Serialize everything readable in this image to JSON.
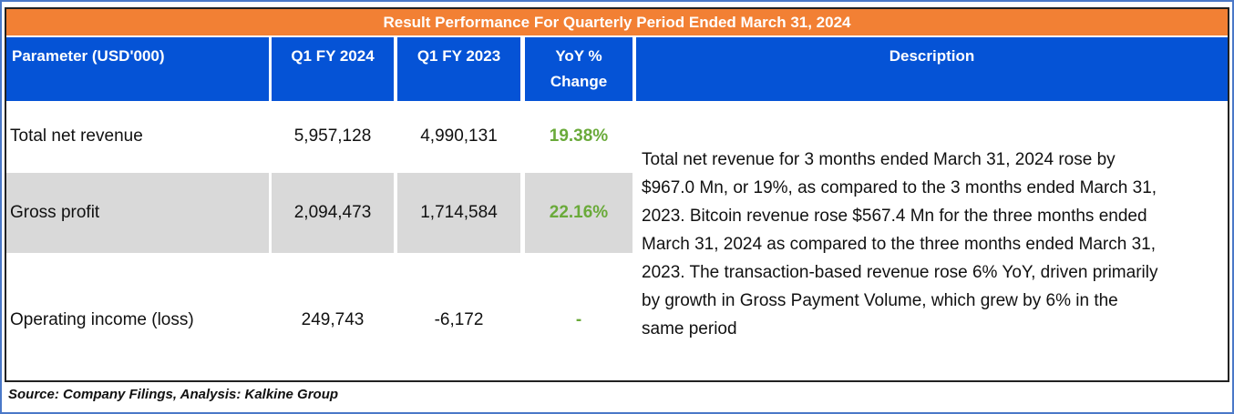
{
  "title": "Result Performance For Quarterly Period Ended March 31, 2024",
  "headers": [
    "Parameter  (USD'000)",
    "Q1 FY 2024",
    "Q1 FY 2023",
    "YoY %",
    "Change",
    "Description"
  ],
  "rows": [
    {
      "parameter": "Total net revenue",
      "q1_2024": "5,957,128",
      "q1_2023": "4,990,131",
      "yoy": "19.38%"
    },
    {
      "parameter": "Gross profit",
      "q1_2024": "2,094,473",
      "q1_2023": "1,714,584",
      "yoy": "22.16%"
    },
    {
      "parameter": "Operating income (loss)",
      "q1_2024": "249,743",
      "q1_2023": "-6,172",
      "yoy": "-"
    }
  ],
  "description_lines": [
    "Total net revenue for 3 months ended March 31, 2024 rose by",
    "$967.0 Mn, or 19%, as compared to the 3 months ended March 31,",
    "2023. Bitcoin revenue rose $567.4 Mn for the three months ended",
    "March 31, 2024 as compared to the three months ended March 31,",
    "2023. The transaction-based revenue rose 6% YoY, driven primarily",
    "by growth in Gross Payment Volume, which grew by 6% in the",
    "same period"
  ],
  "source": "Source: Company Filings, Analysis: Kalkine Group",
  "colors": {
    "title_bg": "#f28034",
    "header_bg": "#0553d6",
    "positive": "#6aaa3a",
    "row_alt": "#d9d9d9"
  }
}
